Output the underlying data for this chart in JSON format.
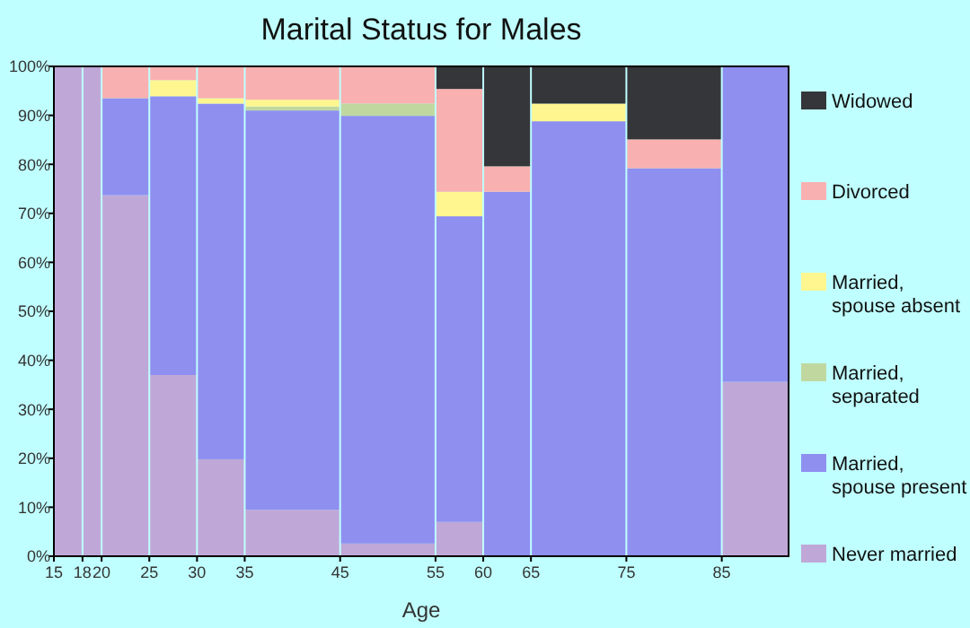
{
  "chart_data": {
    "type": "bar",
    "stacked": true,
    "title": "Marital Status for Males",
    "xlabel": "Age",
    "x": [
      16.5,
      19,
      22.5,
      27.5,
      32.5,
      40,
      50,
      57.5,
      62.5,
      70,
      80,
      88.5
    ],
    "xlim": [
      15,
      92
    ],
    "xticks": [
      15,
      18,
      20,
      25,
      30,
      35,
      45,
      55,
      60,
      65,
      75,
      85
    ],
    "ylim": [
      0,
      100
    ],
    "yticks": [
      {
        "value": 0,
        "label": "0%"
      },
      {
        "value": 10,
        "label": "10%"
      },
      {
        "value": 20,
        "label": "20%"
      },
      {
        "value": 30,
        "label": "30%"
      },
      {
        "value": 40,
        "label": "40%"
      },
      {
        "value": 50,
        "label": "50%"
      },
      {
        "value": 60,
        "label": "60%"
      },
      {
        "value": 70,
        "label": "70%"
      },
      {
        "value": 80,
        "label": "80%"
      },
      {
        "value": 90,
        "label": "90%"
      },
      {
        "value": 100,
        "label": "100%"
      }
    ],
    "legend": "right",
    "grid": false,
    "series": [
      {
        "name": "Never married",
        "color": "#bfa8d8",
        "values": [
          100,
          100,
          73.7,
          37.0,
          19.8,
          9.5,
          2.6,
          7.0,
          0,
          0,
          0,
          35.6
        ]
      },
      {
        "name": "Married, spouse present",
        "color": "#8f8ff0",
        "values": [
          0,
          0,
          19.8,
          56.9,
          72.6,
          81.5,
          87.3,
          62.4,
          74.4,
          88.8,
          79.2,
          64.4
        ]
      },
      {
        "name": "Married, separated",
        "color": "#c0d8a0",
        "values": [
          0,
          0,
          0,
          0,
          0,
          0.8,
          2.5,
          0,
          0,
          0,
          0,
          0
        ]
      },
      {
        "name": "Married, spouse absent",
        "color": "#fff68f",
        "values": [
          0,
          0,
          0,
          3.3,
          1.1,
          1.4,
          0,
          5.0,
          0,
          3.6,
          0,
          0
        ]
      },
      {
        "name": "Divorced",
        "color": "#f9b0b0",
        "values": [
          0,
          0,
          6.5,
          2.8,
          6.5,
          6.8,
          7.6,
          21.0,
          5.2,
          0,
          5.9,
          0
        ]
      },
      {
        "name": "Widowed",
        "color": "#35363a",
        "values": [
          0,
          0,
          0,
          0,
          0,
          0,
          0,
          4.6,
          20.4,
          7.6,
          14.9,
          0
        ]
      }
    ]
  }
}
